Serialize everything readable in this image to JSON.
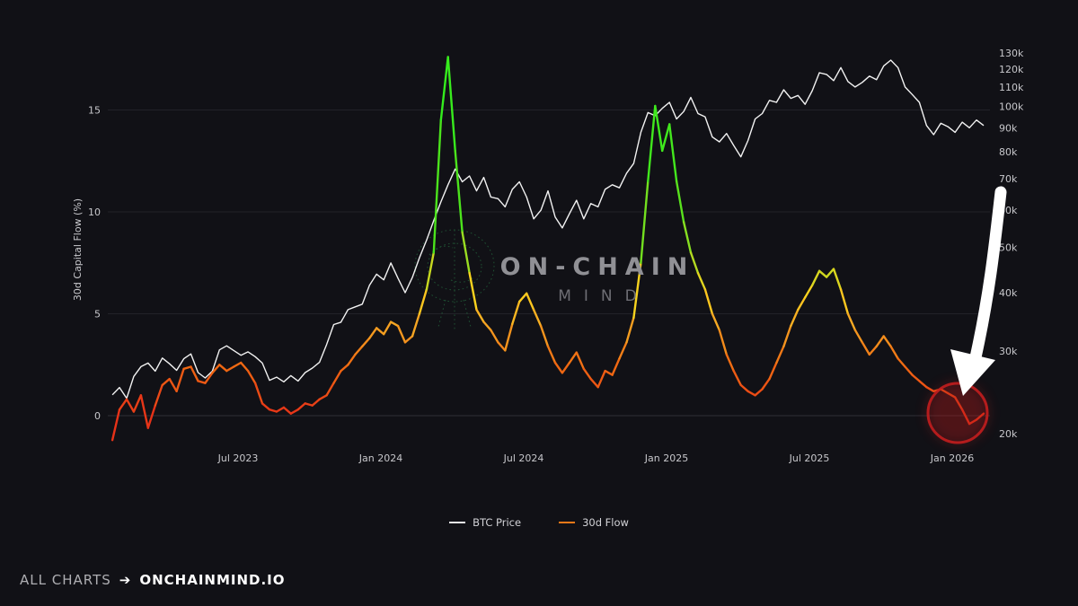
{
  "watermark": {
    "line1": "ON-CHAIN",
    "line2": "MIND"
  },
  "footer": {
    "prefix": "ALL CHARTS",
    "arrow": "➔",
    "site": "ONCHAINMIND.IO"
  },
  "legend": [
    {
      "label": "BTC Price",
      "color": "#e9e9ec"
    },
    {
      "label": "30d Flow",
      "color": "#f07818"
    }
  ],
  "annotations": {
    "circle_color": "#c41e1e",
    "circle_glow_color": "#b51a1a",
    "arrow_color": "#ffffff",
    "brain_color": "#2f9d55"
  },
  "chart_data": {
    "type": "line",
    "title": "",
    "ylabel_left": "30d Capital Flow (%)",
    "left_axis_range": [
      -2,
      18
    ],
    "right_axis_scale": "log",
    "grid": "horizontal-faint",
    "legend_position": "bottom-center",
    "left_ticks": [
      {
        "label": "0",
        "v": 0
      },
      {
        "label": "5",
        "v": 5
      },
      {
        "label": "10",
        "v": 10
      },
      {
        "label": "15",
        "v": 15
      }
    ],
    "right_ticks": [
      {
        "label": "20k",
        "v": 20
      },
      {
        "label": "30k",
        "v": 30
      },
      {
        "label": "40k",
        "v": 40
      },
      {
        "label": "50k",
        "v": 50
      },
      {
        "label": "60k",
        "v": 60
      },
      {
        "label": "70k",
        "v": 70
      },
      {
        "label": "80k",
        "v": 80
      },
      {
        "label": "90k",
        "v": 90
      },
      {
        "label": "100k",
        "v": 100
      },
      {
        "label": "110k",
        "v": 110
      },
      {
        "label": "120k",
        "v": 120
      },
      {
        "label": "130k",
        "v": 130
      }
    ],
    "x_ticks": [
      {
        "label": "Jul 2023",
        "t": 2023.5
      },
      {
        "label": "Jan 2024",
        "t": 2024.0
      },
      {
        "label": "Jul 2024",
        "t": 2024.5
      },
      {
        "label": "Jan 2025",
        "t": 2025.0
      },
      {
        "label": "Jul 2025",
        "t": 2025.5
      },
      {
        "label": "Jan 2026",
        "t": 2026.0
      }
    ],
    "series": [
      {
        "name": "BTC Price",
        "axis": "right",
        "units": "USD thousands",
        "color": "#f2f2f2",
        "t0": 2023.06,
        "dt": 0.025,
        "values": [
          24.2,
          25.1,
          23.8,
          26.5,
          27.8,
          28.3,
          27.2,
          29,
          28.2,
          27.3,
          28.9,
          29.6,
          27,
          26.3,
          27.2,
          30.2,
          30.8,
          30.1,
          29.4,
          29.9,
          29.2,
          28.3,
          26,
          26.4,
          25.8,
          26.6,
          25.9,
          27,
          27.6,
          28.4,
          31,
          34.2,
          34.6,
          36.8,
          37.3,
          37.8,
          41.5,
          43.8,
          42.6,
          46.3,
          42.9,
          40,
          43.1,
          47.5,
          51.8,
          57,
          62.5,
          68,
          73.5,
          69,
          71,
          66,
          70.5,
          64,
          63.5,
          61,
          66.5,
          69,
          64,
          57.5,
          60,
          66,
          58,
          55,
          59,
          63,
          57.5,
          62,
          61,
          66.5,
          68,
          67,
          72,
          75.5,
          88,
          97,
          95.5,
          99,
          102,
          94,
          97.5,
          104.5,
          96.5,
          95,
          86,
          84,
          87.5,
          82.5,
          78,
          84.5,
          94,
          96.5,
          103,
          102,
          108.5,
          104,
          105.5,
          101,
          108,
          118,
          117,
          113.5,
          121,
          113,
          110,
          112.5,
          116,
          114,
          122,
          125.5,
          121,
          110,
          106,
          102,
          91,
          87,
          92,
          90.5,
          88,
          92.5,
          90,
          93.5,
          91
        ]
      },
      {
        "name": "30d Flow",
        "axis": "left",
        "units": "%",
        "color_stops": [
          {
            "v": 0,
            "c": "#e63218"
          },
          {
            "v": 2.5,
            "c": "#f06a12"
          },
          {
            "v": 4.5,
            "c": "#f5a623"
          },
          {
            "v": 6,
            "c": "#ffd21e"
          },
          {
            "v": 8,
            "c": "#9add22"
          },
          {
            "v": 11,
            "c": "#4ce31c"
          },
          {
            "v": 18,
            "c": "#2bf01e"
          }
        ],
        "t0": 2023.06,
        "dt": 0.025,
        "values": [
          -1.2,
          0.3,
          0.8,
          0.2,
          1,
          -0.6,
          0.5,
          1.5,
          1.8,
          1.2,
          2.3,
          2.4,
          1.7,
          1.6,
          2.1,
          2.5,
          2.2,
          2.4,
          2.6,
          2.2,
          1.6,
          0.6,
          0.3,
          0.2,
          0.4,
          0.1,
          0.3,
          0.6,
          0.5,
          0.8,
          1,
          1.6,
          2.2,
          2.5,
          3,
          3.4,
          3.8,
          4.3,
          4,
          4.6,
          4.4,
          3.6,
          3.9,
          5,
          6.2,
          8,
          14.5,
          17.6,
          13,
          9,
          7,
          5.2,
          4.6,
          4.2,
          3.6,
          3.2,
          4.5,
          5.6,
          6,
          5.2,
          4.4,
          3.4,
          2.6,
          2.1,
          2.6,
          3.1,
          2.3,
          1.8,
          1.4,
          2.2,
          2,
          2.8,
          3.6,
          4.8,
          7.5,
          11.5,
          15.2,
          13,
          14.3,
          11.5,
          9.5,
          8,
          7,
          6.2,
          5,
          4.2,
          3,
          2.2,
          1.5,
          1.2,
          1,
          1.3,
          1.8,
          2.6,
          3.4,
          4.4,
          5.2,
          5.8,
          6.4,
          7.1,
          6.8,
          7.2,
          6.2,
          5,
          4.2,
          3.6,
          3,
          3.4,
          3.9,
          3.4,
          2.8,
          2.4,
          2,
          1.7,
          1.4,
          1.2,
          1.3,
          1.1,
          0.9,
          0.3,
          -0.4,
          -0.2,
          0.1
        ]
      }
    ]
  }
}
